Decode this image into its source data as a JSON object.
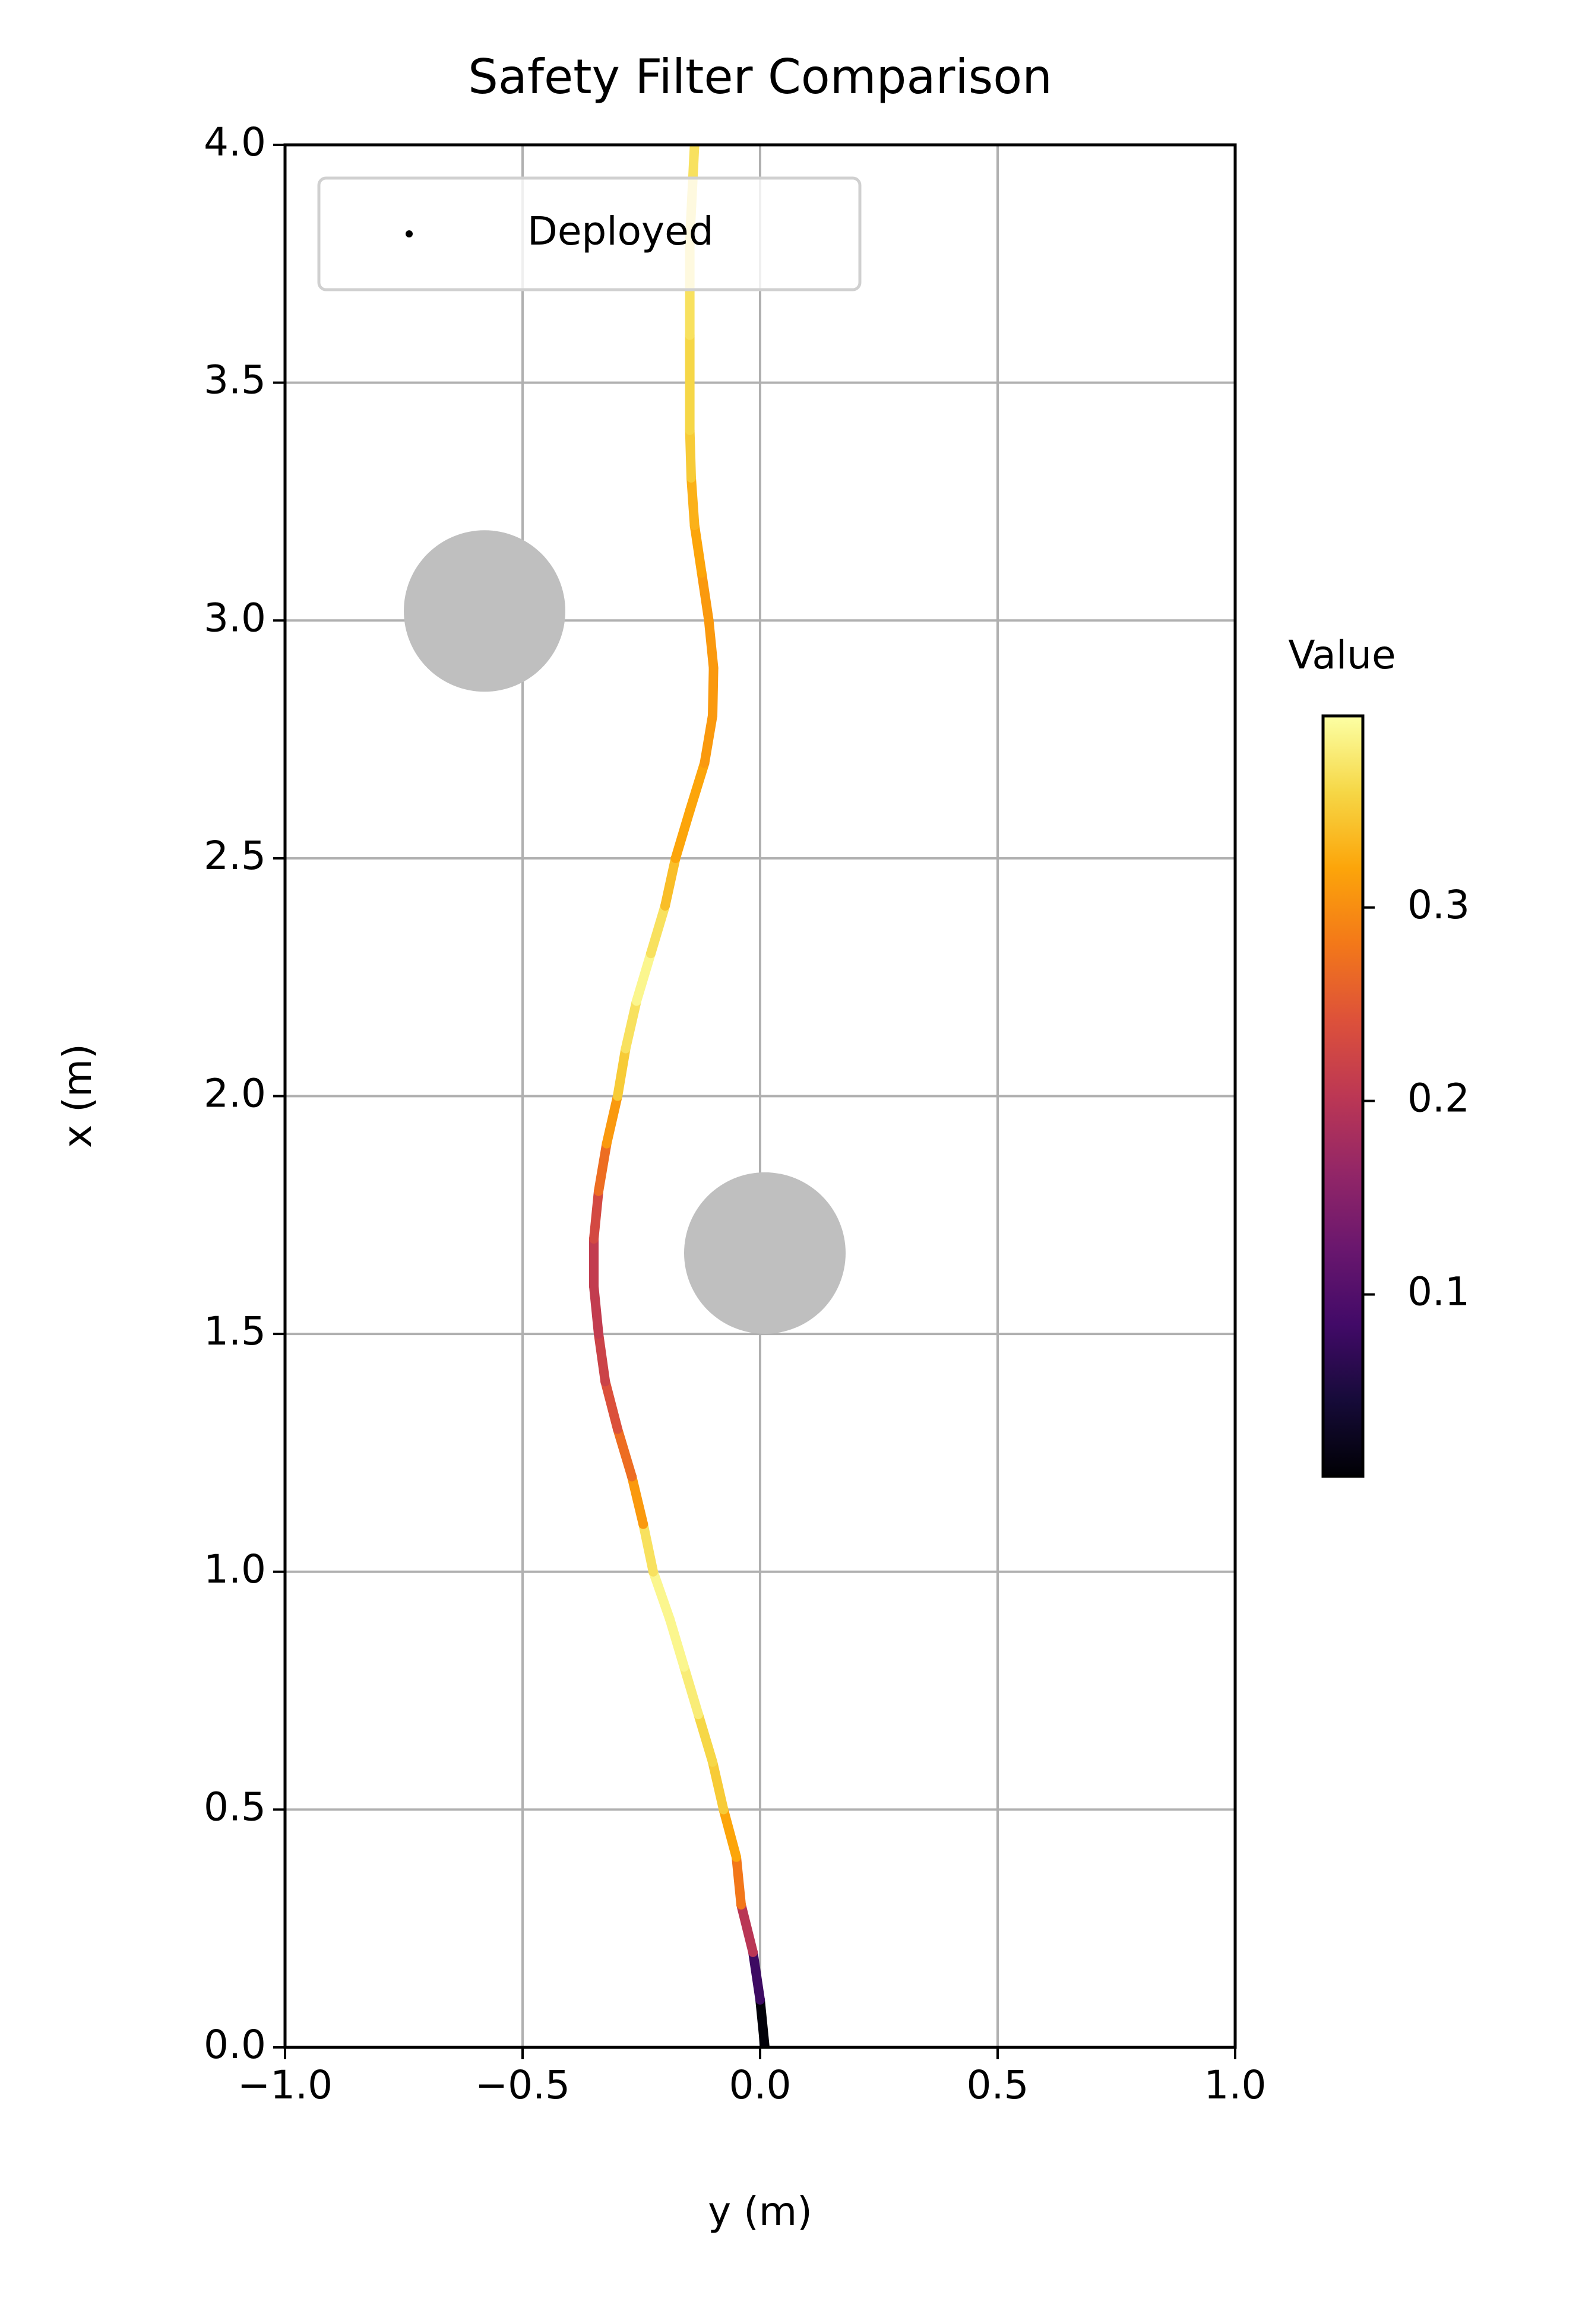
{
  "chart_data": {
    "type": "scatter",
    "title": "Safety Filter Comparison",
    "xlabel": "y (m)",
    "ylabel": "x (m)",
    "xlim": [
      -1,
      1
    ],
    "ylim": [
      0,
      4
    ],
    "xticks": [
      {
        "value": -1,
        "label": "−1.0"
      },
      {
        "value": -0.5,
        "label": "−0.5"
      },
      {
        "value": 0,
        "label": "0.0"
      },
      0.5,
      {
        "value": 1,
        "label": "1.0"
      }
    ],
    "yticks": [
      {
        "value": 0,
        "label": "0.0"
      },
      0.5,
      {
        "value": 1,
        "label": "1.0"
      },
      1.5,
      {
        "value": 2,
        "label": "2.0"
      },
      2.5,
      {
        "value": 3,
        "label": "3.0"
      },
      3.5,
      {
        "value": 4,
        "label": "4.0"
      }
    ],
    "grid": true,
    "legend": "upper left",
    "series": [
      {
        "name": "Deployed",
        "color": "#000000",
        "x": [
          0.01,
          0.0,
          -0.015,
          -0.04,
          -0.05,
          -0.077,
          -0.1,
          -0.13,
          -0.16,
          -0.19,
          -0.225,
          -0.246,
          -0.27,
          -0.3,
          -0.326,
          -0.34,
          -0.35,
          -0.35,
          -0.34,
          -0.323,
          -0.3,
          -0.283,
          -0.26,
          -0.23,
          -0.2,
          -0.178,
          -0.148,
          -0.117,
          -0.1,
          -0.098,
          -0.108,
          -0.123,
          -0.138,
          -0.145,
          -0.148,
          -0.148,
          -0.148,
          -0.138
        ],
        "values": [
          0.0,
          0.1,
          0.2,
          0.3,
          0.4,
          0.5,
          0.6,
          0.7,
          0.8,
          0.9,
          1.0,
          1.1,
          1.2,
          1.3,
          1.4,
          1.5,
          1.6,
          1.7,
          1.8,
          1.9,
          2.0,
          2.1,
          2.2,
          2.3,
          2.4,
          2.5,
          2.6,
          2.7,
          2.8,
          2.9,
          3.0,
          3.1,
          3.2,
          3.3,
          3.4,
          3.6,
          3.8,
          4.0
        ],
        "c": [
          0.01,
          0.08,
          0.2,
          0.28,
          0.32,
          0.35,
          0.36,
          0.38,
          0.39,
          0.39,
          0.37,
          0.31,
          0.27,
          0.24,
          0.22,
          0.21,
          0.21,
          0.23,
          0.27,
          0.31,
          0.35,
          0.37,
          0.39,
          0.37,
          0.34,
          0.32,
          0.32,
          0.31,
          0.31,
          0.31,
          0.31,
          0.32,
          0.33,
          0.35,
          0.36,
          0.37,
          0.37,
          0.37
        ]
      }
    ],
    "obstacles": {
      "color": "#bfbfbf",
      "x": [
        -0.58,
        0.01
      ],
      "y": [
        3.02,
        1.67
      ],
      "r": [
        0.17,
        0.17
      ]
    },
    "colorbar": {
      "title": "Value",
      "colormap": "inferno",
      "clim": [
        0.006,
        0.399
      ],
      "ticks": [
        0.1,
        0.2,
        0.3
      ]
    }
  }
}
